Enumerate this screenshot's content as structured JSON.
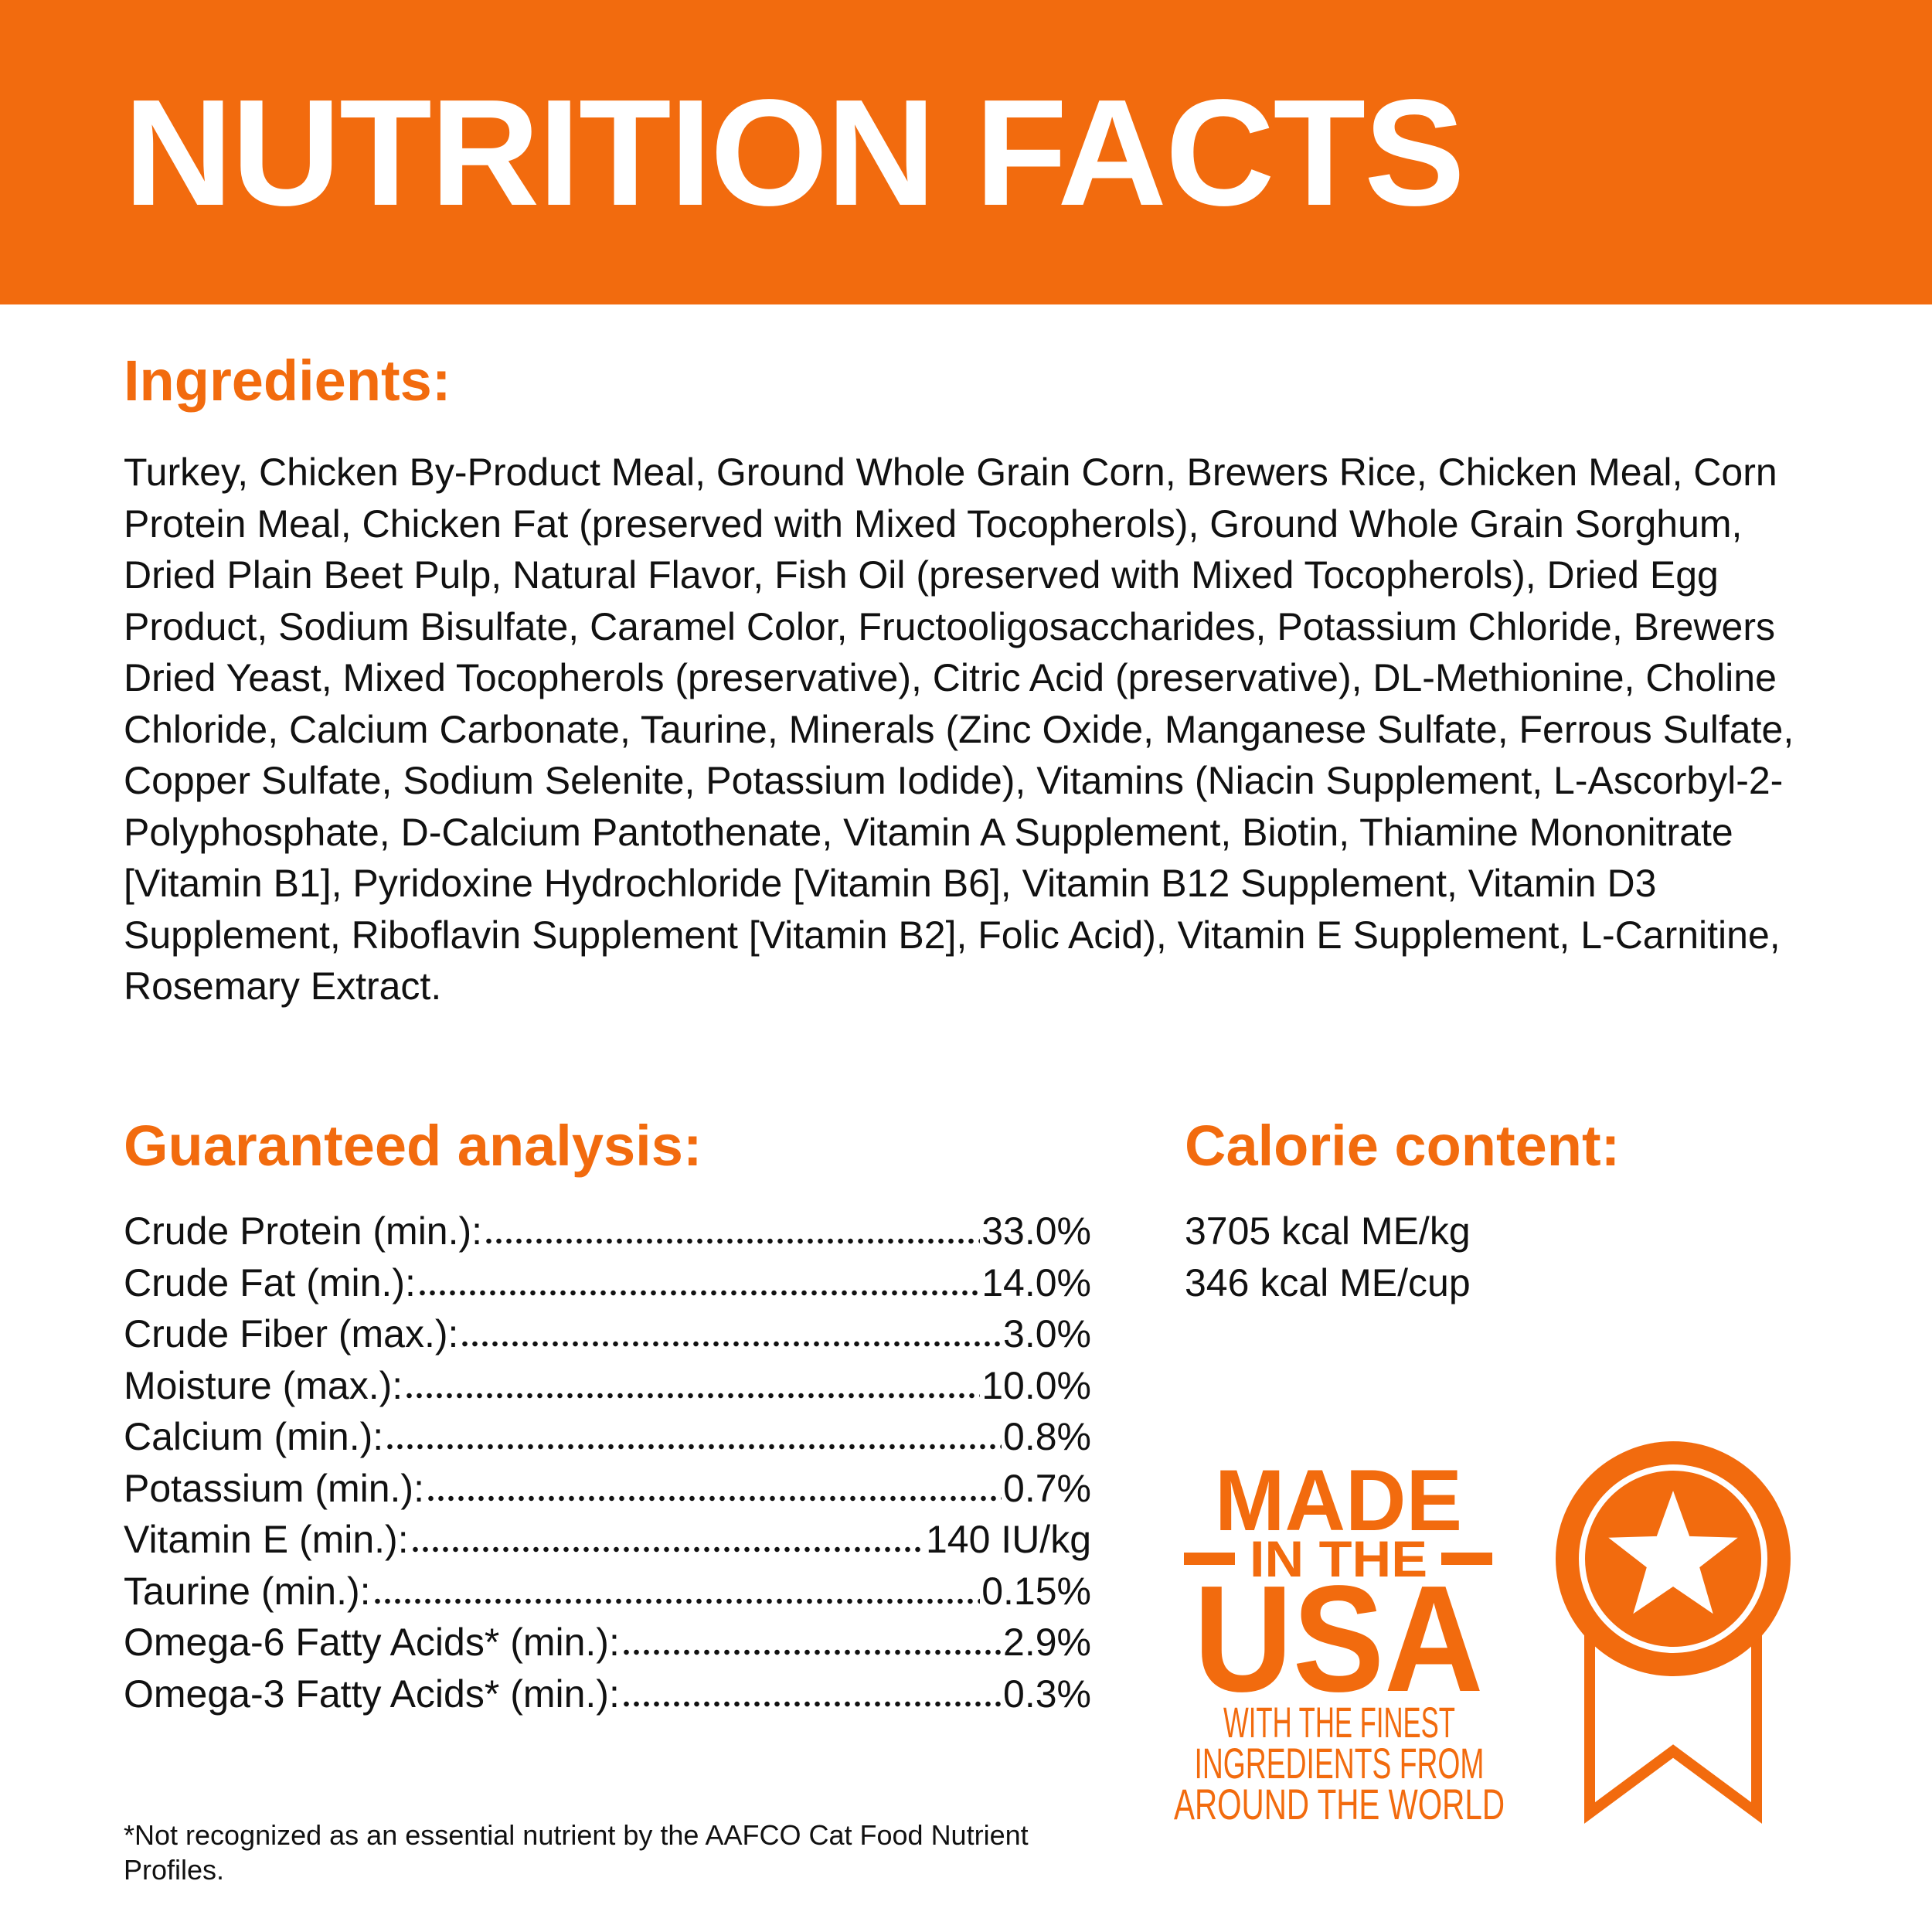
{
  "header": {
    "title": "NUTRITION FACTS"
  },
  "ingredients": {
    "heading": "Ingredients:",
    "text": "Turkey, Chicken By-Product Meal, Ground Whole Grain Corn, Brewers Rice, Chicken Meal, Corn Protein Meal, Chicken Fat (preserved with Mixed Tocopherols), Ground Whole Grain Sorghum, Dried Plain Beet Pulp, Natural Flavor, Fish Oil (preserved with Mixed Tocopherols), Dried Egg Product, Sodium Bisulfate, Caramel Color, Fructooligosaccharides, Potassium Chloride, Brewers Dried Yeast, Mixed Tocopherols (preservative), Citric Acid (preservative), DL-Methionine, Choline Chloride, Calcium Carbonate, Taurine, Minerals (Zinc Oxide, Manganese Sulfate, Ferrous Sulfate, Copper Sulfate, Sodium Selenite, Potassium Iodide), Vitamins (Niacin Supplement, L-Ascorbyl-2-Polyphosphate, D-Calcium Pantothenate, Vitamin A Supplement, Biotin, Thiamine Mononitrate [Vitamin B1], Pyridoxine Hydrochloride [Vitamin B6], Vitamin B12 Supplement, Vitamin D3 Supplement, Riboflavin Supplement [Vitamin B2], Folic Acid), Vitamin E Supplement, L-Carnitine, Rosemary Extract."
  },
  "guaranteed_analysis": {
    "heading": "Guaranteed analysis:",
    "rows": [
      [
        "Crude Protein (min.):",
        "33.0%"
      ],
      [
        "Crude Fat (min.):",
        "14.0%"
      ],
      [
        "Crude Fiber (max.):",
        "3.0%"
      ],
      [
        "Moisture (max.):",
        "10.0%"
      ],
      [
        "Calcium (min.):",
        "0.8%"
      ],
      [
        "Potassium (min.):",
        "0.7%"
      ],
      [
        "Vitamin E (min.):",
        "140 IU/kg"
      ],
      [
        "Taurine (min.):",
        "0.15%"
      ],
      [
        "Omega-6 Fatty Acids* (min.):",
        "2.9%"
      ],
      [
        "Omega-3 Fatty Acids* (min.):",
        "0.3%"
      ]
    ]
  },
  "calorie_content": {
    "heading": "Calorie content:",
    "lines": [
      "3705 kcal ME/kg",
      "346 kcal ME/cup"
    ]
  },
  "badge": {
    "lines": [
      "MADE",
      "IN THE",
      "USA",
      "WITH THE FINEST",
      "INGREDIENTS FROM",
      "AROUND THE WORLD"
    ]
  },
  "footnote": "*Not recognized as an essential nutrient by the AAFCO Cat Food Nutrient Profiles."
}
